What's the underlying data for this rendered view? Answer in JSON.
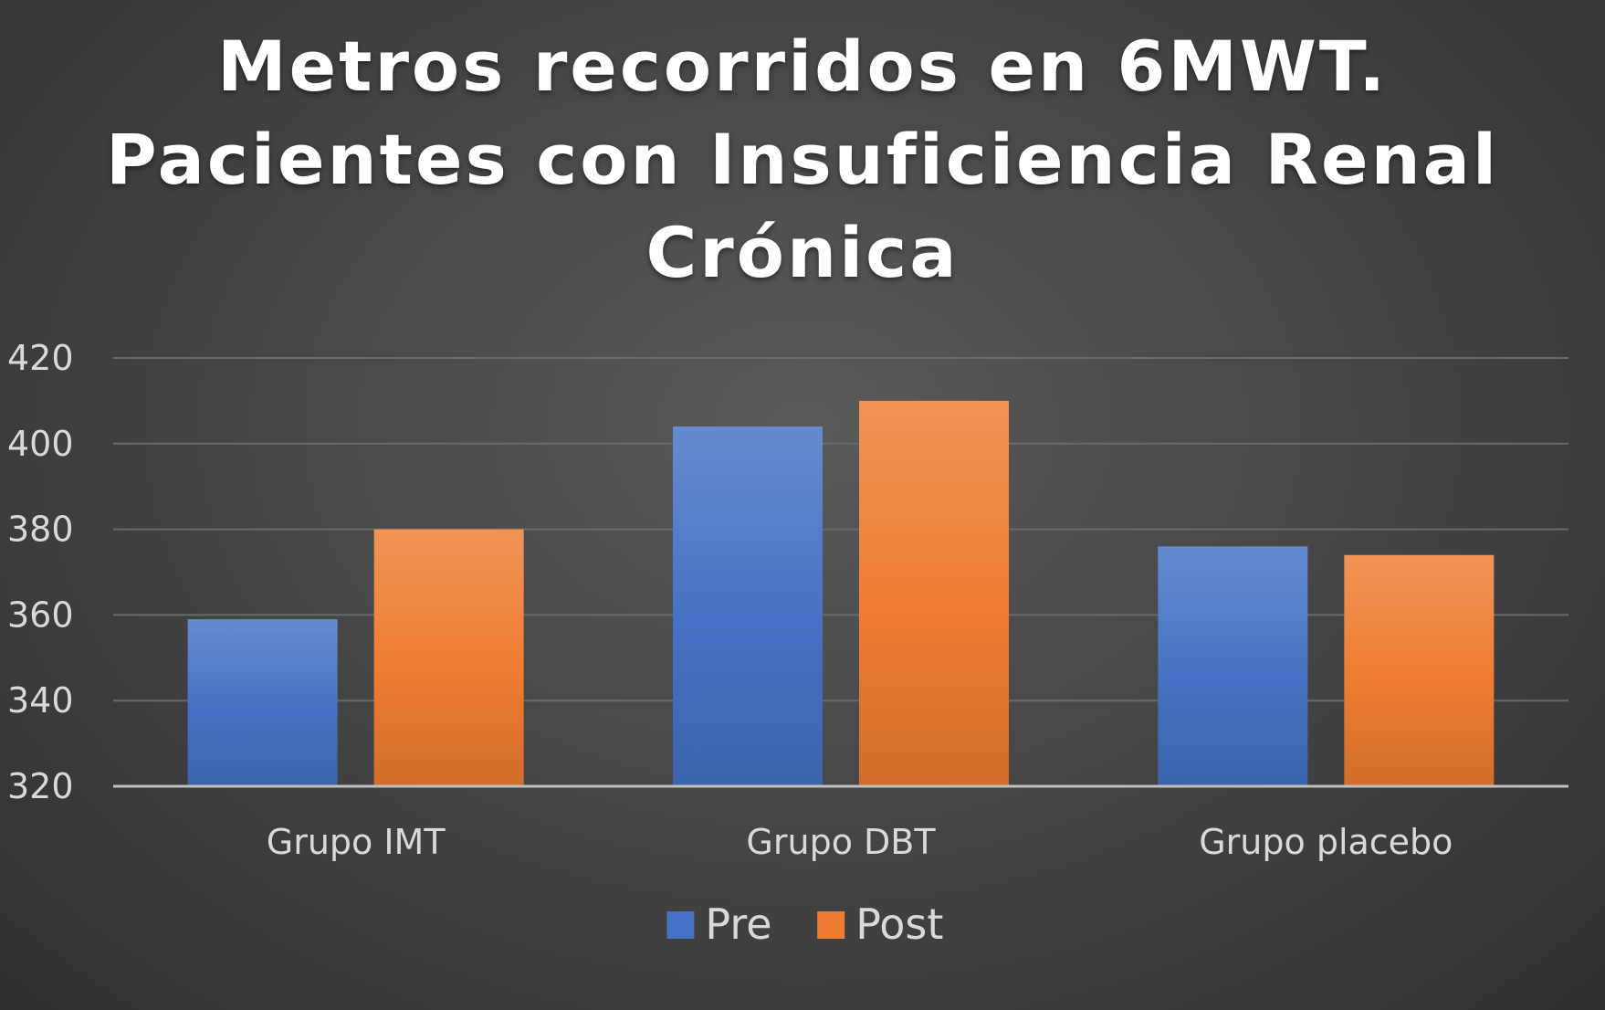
{
  "chart_data": {
    "type": "bar",
    "title": [
      "Metros recorridos en 6MWT.",
      "Pacientes con Insuficiencia Renal",
      "Crónica"
    ],
    "categories": [
      "Grupo IMT",
      "Grupo DBT",
      "Grupo placebo"
    ],
    "series": [
      {
        "name": "Pre",
        "values": [
          359,
          404,
          376
        ]
      },
      {
        "name": "Post",
        "values": [
          380,
          410,
          374
        ]
      }
    ],
    "ylim": [
      320,
      420
    ],
    "yticks": [
      320,
      340,
      360,
      380,
      400,
      420
    ],
    "grid": true,
    "legend_position": "bottom",
    "colors": {
      "Pre": "#4472c4",
      "Post": "#ed7d31",
      "background": "#474747",
      "gridline": "#6a6a6a",
      "axis": "#bfbfbf",
      "text": "#d9d9d9"
    }
  }
}
